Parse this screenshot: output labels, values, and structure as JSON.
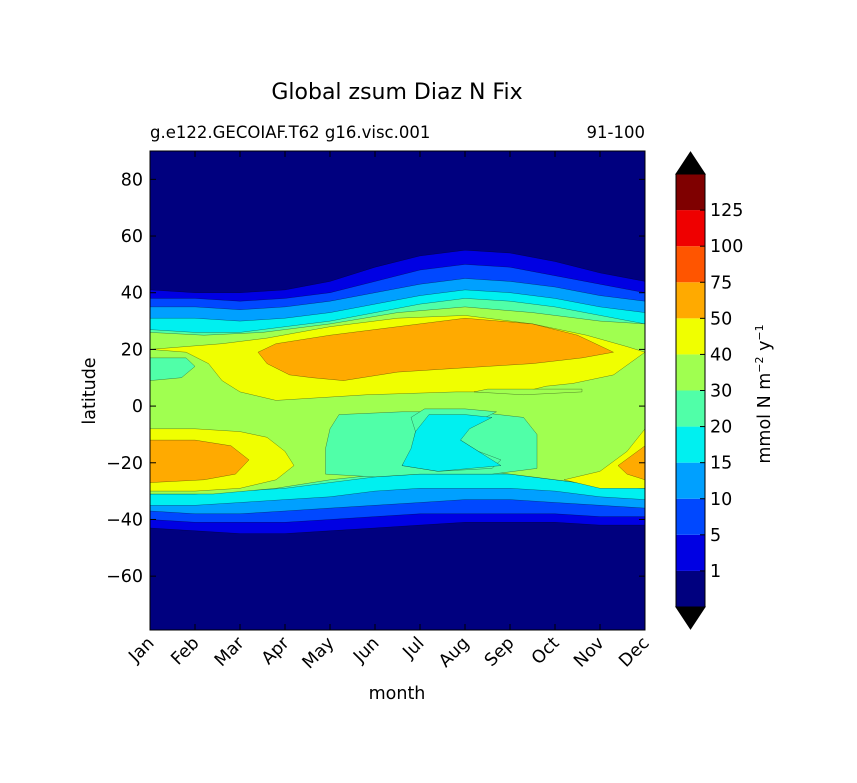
{
  "chart_data": {
    "type": "heatmap",
    "title": "Global zsum Diaz N Fix",
    "subtitle_left": "g.e122.GECOIAF.T62 g16.visc.001",
    "subtitle_right": "91-100",
    "xlabel": "month",
    "ylabel": "latitude",
    "x_categories": [
      "Jan",
      "Feb",
      "Mar",
      "Apr",
      "May",
      "Jun",
      "Jul",
      "Aug",
      "Sep",
      "Oct",
      "Nov",
      "Dec"
    ],
    "xlim": [
      1,
      12
    ],
    "ylim": [
      -79,
      90
    ],
    "y_ticks": [
      80,
      60,
      40,
      20,
      0,
      -20,
      -40,
      -60
    ],
    "y_tick_labels": [
      "80",
      "60",
      "40",
      "20",
      "0",
      "−20",
      "−40",
      "−60"
    ],
    "colorbar": {
      "label": "mmol N m⁻² y⁻¹",
      "label_main": "mmol N m",
      "label_exp1": "−2",
      "label_unit2": "y",
      "label_exp2": "−1",
      "levels": [
        0,
        1,
        5,
        10,
        15,
        20,
        30,
        40,
        50,
        75,
        100,
        125,
        150
      ],
      "tick_labels": [
        "1",
        "5",
        "10",
        "15",
        "20",
        "30",
        "40",
        "50",
        "75",
        "100",
        "125"
      ],
      "colors": [
        "#00007f",
        "#0000e3",
        "#0048ff",
        "#00a0ff",
        "#00f0f0",
        "#50ffa8",
        "#a0ff50",
        "#f0ff00",
        "#ffaa00",
        "#ff5500",
        "#ef0000",
        "#7f0000"
      ],
      "extend_colors": [
        "#000000",
        "#000000"
      ]
    },
    "latitude_bands": {
      "months": [
        1,
        2,
        3,
        4,
        5,
        6,
        7,
        8,
        9,
        10,
        11,
        12
      ],
      "north_bands": [
        {
          "level": 1,
          "lat": [
            41,
            40,
            40,
            41,
            44,
            49,
            53,
            55,
            54,
            51,
            47,
            44
          ]
        },
        {
          "level": 5,
          "lat": [
            38,
            38,
            37,
            38,
            40,
            44,
            48,
            50,
            49,
            46,
            43,
            40
          ]
        },
        {
          "level": 10,
          "lat": [
            35,
            35,
            34,
            35,
            37,
            40,
            43,
            45,
            44,
            42,
            39,
            37
          ]
        },
        {
          "level": 15,
          "lat": [
            31,
            31,
            30,
            31,
            33,
            36,
            39,
            41,
            40,
            38,
            35,
            33
          ]
        },
        {
          "level": 20,
          "lat": [
            27,
            26,
            26,
            28,
            30,
            33,
            36,
            38,
            37,
            35,
            32,
            29
          ]
        }
      ],
      "south_bands": [
        {
          "level": 1,
          "lat": [
            -43,
            -44,
            -45,
            -45,
            -44,
            -43,
            -42,
            -41,
            -41,
            -41,
            -42,
            -42
          ]
        },
        {
          "level": 5,
          "lat": [
            -40,
            -41,
            -41,
            -41,
            -40,
            -39,
            -38,
            -38,
            -38,
            -38,
            -39,
            -39
          ]
        },
        {
          "level": 10,
          "lat": [
            -37,
            -38,
            -38,
            -37,
            -36,
            -35,
            -34,
            -33,
            -33,
            -34,
            -35,
            -36
          ]
        },
        {
          "level": 15,
          "lat": [
            -35,
            -35,
            -34,
            -33,
            -32,
            -30,
            -29,
            -29,
            -29,
            -30,
            -32,
            -33
          ]
        },
        {
          "level": 20,
          "lat": [
            -31,
            -31,
            -30,
            -29,
            -27,
            -25,
            -24,
            -24,
            -24,
            -26,
            -28,
            -29
          ]
        }
      ],
      "regions": [
        {
          "level": 30,
          "points": [
            [
              1.0,
              26
            ],
            [
              2.2,
              25
            ],
            [
              3.5,
              26
            ],
            [
              5,
              29
            ],
            [
              6.5,
              33
            ],
            [
              8,
              35
            ],
            [
              9.5,
              33
            ],
            [
              11,
              30
            ],
            [
              12,
              29
            ],
            [
              12,
              -29
            ],
            [
              11,
              -28
            ],
            [
              9.5,
              -25
            ],
            [
              8.5,
              -23
            ],
            [
              7.2,
              -23
            ],
            [
              6.2,
              -24
            ],
            [
              5,
              -26
            ],
            [
              3.8,
              -29
            ],
            [
              2.4,
              -31
            ],
            [
              1.0,
              -31
            ]
          ]
        },
        {
          "level": 20,
          "points": [
            [
              1.0,
              9
            ],
            [
              1.7,
              10
            ],
            [
              2.0,
              14
            ],
            [
              1.8,
              17
            ],
            [
              1.0,
              17
            ]
          ]
        },
        {
          "level": 20,
          "points": [
            [
              5.2,
              -3
            ],
            [
              6.6,
              -2
            ],
            [
              8.2,
              -2
            ],
            [
              9.3,
              -4
            ],
            [
              9.6,
              -10
            ],
            [
              9.6,
              -22
            ],
            [
              8.6,
              -24
            ],
            [
              7.0,
              -24
            ],
            [
              6.0,
              -25
            ],
            [
              4.9,
              -24
            ],
            [
              4.9,
              -15
            ],
            [
              5.0,
              -8
            ]
          ]
        },
        {
          "level": 40,
          "points": [
            [
              1.0,
              20
            ],
            [
              1.8,
              19
            ],
            [
              2.3,
              15
            ],
            [
              2.6,
              9
            ],
            [
              3.0,
              5
            ],
            [
              3.8,
              2
            ],
            [
              5.8,
              4
            ],
            [
              7.8,
              5
            ],
            [
              9.3,
              5
            ],
            [
              9.8,
              7
            ],
            [
              10.4,
              8
            ],
            [
              11.3,
              11
            ],
            [
              12,
              19
            ],
            [
              11.6,
              21
            ],
            [
              10.7,
              25
            ],
            [
              9.5,
              29
            ],
            [
              8.0,
              32
            ],
            [
              6.5,
              31
            ],
            [
              5.0,
              28
            ],
            [
              3.6,
              24
            ],
            [
              2.6,
              22
            ]
          ]
        },
        {
          "level": 30,
          "points": [
            [
              8.5,
              6
            ],
            [
              9.4,
              6
            ],
            [
              10.6,
              6
            ],
            [
              10.6,
              5
            ],
            [
              9.3,
              4
            ],
            [
              8.2,
              5
            ]
          ]
        },
        {
          "level": 50,
          "points": [
            [
              3.4,
              19
            ],
            [
              3.8,
              22
            ],
            [
              5.0,
              25
            ],
            [
              6.5,
              28
            ],
            [
              8.0,
              31
            ],
            [
              9.5,
              29
            ],
            [
              10.5,
              25
            ],
            [
              11.3,
              19
            ],
            [
              10.6,
              17
            ],
            [
              9.5,
              15
            ],
            [
              8.5,
              14
            ],
            [
              7.5,
              13
            ],
            [
              6.5,
              12
            ],
            [
              5.3,
              9
            ],
            [
              4.6,
              10
            ],
            [
              4.1,
              11
            ],
            [
              3.6,
              15
            ]
          ]
        },
        {
          "level": 40,
          "points": [
            [
              1.0,
              -8
            ],
            [
              2.0,
              -8
            ],
            [
              3.0,
              -9
            ],
            [
              3.6,
              -11
            ],
            [
              4.0,
              -16
            ],
            [
              4.2,
              -21
            ],
            [
              3.8,
              -26
            ],
            [
              3.0,
              -29
            ],
            [
              2.0,
              -30
            ],
            [
              1.0,
              -30
            ]
          ]
        },
        {
          "level": 50,
          "points": [
            [
              1.0,
              -12
            ],
            [
              2.0,
              -12
            ],
            [
              2.8,
              -14
            ],
            [
              3.2,
              -19
            ],
            [
              2.9,
              -24
            ],
            [
              2.2,
              -26
            ],
            [
              1.0,
              -27
            ]
          ]
        },
        {
          "level": 20,
          "points": [
            [
              7.1,
              -1
            ],
            [
              8.0,
              -1
            ],
            [
              8.7,
              -2
            ],
            [
              8.2,
              -6
            ],
            [
              7.8,
              -11
            ],
            [
              8.3,
              -16
            ],
            [
              8.8,
              -19
            ],
            [
              8.6,
              -22
            ],
            [
              7.4,
              -23
            ],
            [
              6.6,
              -21
            ],
            [
              6.8,
              -16
            ],
            [
              6.9,
              -9
            ],
            [
              6.8,
              -4
            ]
          ]
        },
        {
          "level": 15,
          "points": [
            [
              7.2,
              -3
            ],
            [
              8.0,
              -3
            ],
            [
              8.6,
              -4
            ],
            [
              8.1,
              -8
            ],
            [
              7.9,
              -12
            ],
            [
              8.4,
              -17
            ],
            [
              8.8,
              -21
            ],
            [
              7.4,
              -23
            ],
            [
              6.6,
              -21
            ],
            [
              6.8,
              -15
            ],
            [
              6.9,
              -9
            ]
          ]
        },
        {
          "level": 40,
          "points": [
            [
              10.2,
              -26
            ],
            [
              11.0,
              -23
            ],
            [
              11.6,
              -16
            ],
            [
              12,
              -8
            ],
            [
              12,
              -29
            ],
            [
              11.0,
              -29
            ]
          ]
        },
        {
          "level": 50,
          "points": [
            [
              11.4,
              -21
            ],
            [
              12,
              -14
            ],
            [
              12,
              -26
            ],
            [
              11.6,
              -24
            ]
          ]
        }
      ]
    }
  }
}
